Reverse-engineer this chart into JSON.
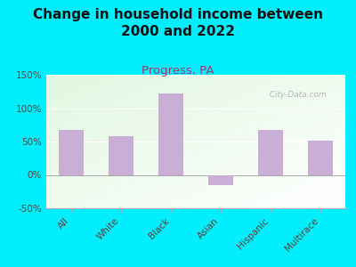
{
  "title": "Change in household income between\n2000 and 2022",
  "subtitle": "Progress, PA",
  "categories": [
    "All",
    "White",
    "Black",
    "Asian",
    "Hispanic",
    "Multirace"
  ],
  "values": [
    68,
    58,
    122,
    -15,
    67,
    52
  ],
  "bar_color": "#c9aed6",
  "title_fontsize": 11,
  "subtitle_fontsize": 9.5,
  "subtitle_color": "#9b3b6b",
  "tick_label_color": "#5d4037",
  "ylim": [
    -50,
    150
  ],
  "yticks": [
    -50,
    0,
    50,
    100,
    150
  ],
  "ytick_labels": [
    "-50%",
    "0%",
    "50%",
    "100%",
    "150%"
  ],
  "bg_outer": "#00eeff",
  "watermark": "  City-Data.com",
  "watermark_color": "#aaaaaa"
}
